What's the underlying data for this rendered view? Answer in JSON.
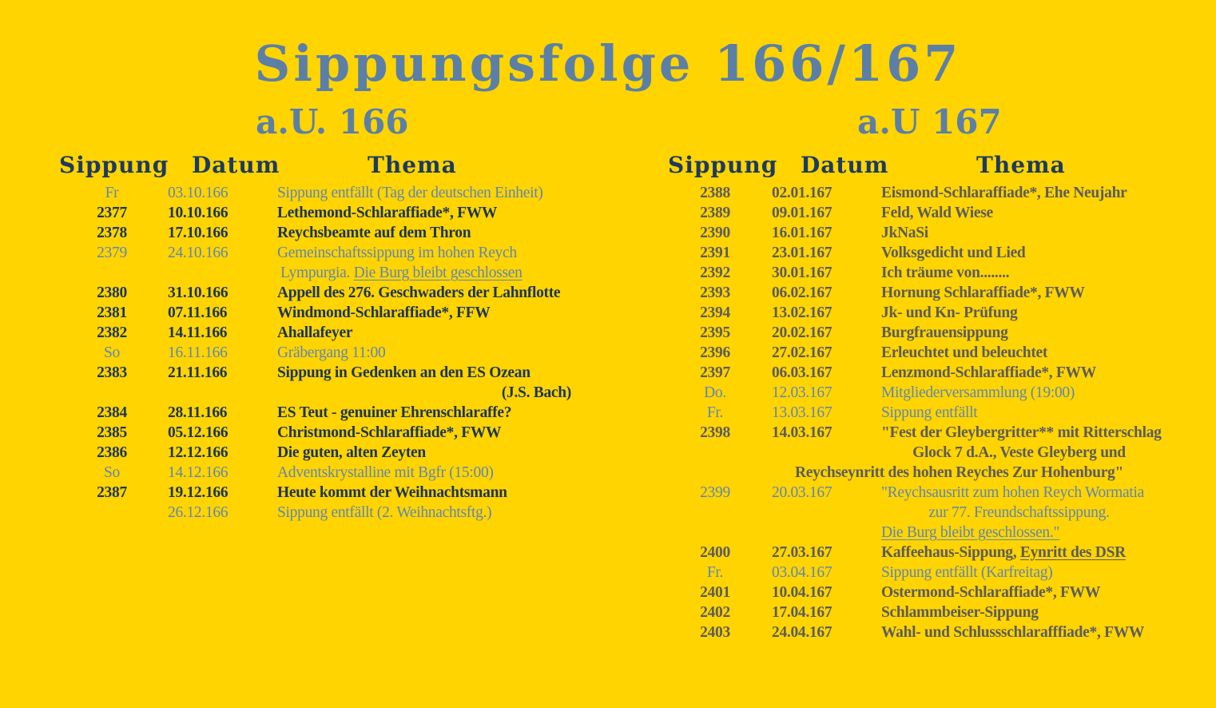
{
  "title": "Sippungsfolge 166/167",
  "colors": {
    "background": "#FFD400",
    "title": "#5b7fa6",
    "dark": "#1d3557",
    "light": "#5f86b3",
    "grey": "#5c5c5c"
  },
  "headers": {
    "sippung": "Sippung",
    "datum": "Datum",
    "thema": "Thema"
  },
  "left": {
    "year": "a.U. 166",
    "rows": [
      {
        "num": "Fr",
        "date": "03.10.166",
        "style": "light",
        "parts": [
          {
            "text": "Sippung entfällt (Tag der deutschen Einheit)"
          }
        ]
      },
      {
        "num": "2377",
        "date": "10.10.166",
        "style": "dark",
        "parts": [
          {
            "text": "Lethemond-Schlaraffiade*, FWW"
          }
        ]
      },
      {
        "num": "2378",
        "date": "17.10.166",
        "style": "dark",
        "parts": [
          {
            "text": "Reychsbeamte auf dem Thron"
          }
        ]
      },
      {
        "num": "2379",
        "date": "24.10.166",
        "style": "light",
        "parts": [
          {
            "text": "Gemeinschaftssippung im hohen Reych"
          }
        ]
      },
      {
        "num": "",
        "date": "",
        "style": "light",
        "align": "indent",
        "parts": [
          {
            "text": "Lympurgia. "
          },
          {
            "text": "Die Burg bleibt geschlossen",
            "underline": true
          }
        ]
      },
      {
        "num": "2380",
        "date": "31.10.166",
        "style": "dark",
        "parts": [
          {
            "text": "Appell des 276. Geschwaders der Lahnflotte"
          }
        ]
      },
      {
        "num": "2381",
        "date": "07.11.166",
        "style": "dark",
        "parts": [
          {
            "text": "Windmond-Schlaraffiade*, FFW"
          }
        ]
      },
      {
        "num": "2382",
        "date": "14.11.166",
        "style": "dark",
        "parts": [
          {
            "text": "Ahallafeyer"
          }
        ]
      },
      {
        "num": "So",
        "date": "16.11.166",
        "style": "light",
        "parts": [
          {
            "text": "Gräbergang   11:00"
          }
        ]
      },
      {
        "num": "2383",
        "date": "21.11.166",
        "style": "dark",
        "parts": [
          {
            "text": "Sippung in Gedenken an den  ES Ozean"
          }
        ]
      },
      {
        "num": "",
        "date": "",
        "style": "dark",
        "align": "right",
        "parts": [
          {
            "text": "(J.S. Bach)"
          }
        ]
      },
      {
        "num": "2384",
        "date": "28.11.166",
        "style": "dark",
        "parts": [
          {
            "text": "ES Teut - genuiner Ehrenschlaraffe?"
          }
        ]
      },
      {
        "num": "2385",
        "date": "05.12.166",
        "style": "dark",
        "parts": [
          {
            "text": "Christmond-Schlaraffiade*, FWW"
          }
        ]
      },
      {
        "num": "2386",
        "date": "12.12.166",
        "style": "dark",
        "parts": [
          {
            "text": "Die guten, alten Zeyten"
          }
        ]
      },
      {
        "num": "So",
        "date": "14.12.166",
        "style": "light",
        "parts": [
          {
            "text": "Adventskrystalline mit Bgfr (15:00)"
          }
        ]
      },
      {
        "num": "2387",
        "date": "19.12.166",
        "style": "dark",
        "parts": [
          {
            "text": "Heute kommt der Weihnachtsmann"
          }
        ]
      },
      {
        "num": "",
        "date": "26.12.166",
        "style": "light",
        "parts": [
          {
            "text": "Sippung entfällt (2. Weihnachtsftg.)"
          }
        ]
      }
    ]
  },
  "right": {
    "year": "a.U 167",
    "rows": [
      {
        "num": "2388",
        "date": "02.01.167",
        "style": "grey",
        "parts": [
          {
            "text": "Eismond-Schlaraffiade*, Ehe Neujahr"
          }
        ]
      },
      {
        "num": "2389",
        "date": "09.01.167",
        "style": "grey",
        "parts": [
          {
            "text": "Feld, Wald Wiese"
          }
        ]
      },
      {
        "num": "2390",
        "date": "16.01.167",
        "style": "grey",
        "parts": [
          {
            "text": "JkNaSi"
          }
        ]
      },
      {
        "num": "2391",
        "date": "23.01.167",
        "style": "grey",
        "parts": [
          {
            "text": "Volksgedicht und Lied"
          }
        ]
      },
      {
        "num": "2392",
        "date": "30.01.167",
        "style": "grey",
        "parts": [
          {
            "text": "Ich träume von........"
          }
        ]
      },
      {
        "num": "2393",
        "date": "06.02.167",
        "style": "grey",
        "parts": [
          {
            "text": "Hornung Schlaraffiade*, FWW"
          }
        ]
      },
      {
        "num": "2394",
        "date": "13.02.167",
        "style": "grey",
        "parts": [
          {
            "text": "Jk- und Kn- Prüfung"
          }
        ]
      },
      {
        "num": "2395",
        "date": "20.02.167",
        "style": "grey",
        "parts": [
          {
            "text": "Burgfrauensippung"
          }
        ]
      },
      {
        "num": "2396",
        "date": "27.02.167",
        "style": "grey",
        "parts": [
          {
            "text": "Erleuchtet und beleuchtet"
          }
        ]
      },
      {
        "num": "2397",
        "date": "06.03.167",
        "style": "grey",
        "parts": [
          {
            "text": "Lenzmond-Schlaraffiade*, FWW"
          }
        ]
      },
      {
        "num": "Do.",
        "date": "12.03.167",
        "style": "light",
        "parts": [
          {
            "text": "Mitgliederversammlung (19:00)"
          }
        ]
      },
      {
        "num": "Fr.",
        "date": "13.03.167",
        "style": "light",
        "parts": [
          {
            "text": "Sippung entfällt"
          }
        ]
      },
      {
        "num": "2398",
        "date": "14.03.167",
        "style": "grey",
        "parts": [
          {
            "text": "\"Fest der Gleybergritter** mit Ritterschlag"
          }
        ]
      },
      {
        "num": "",
        "date": "",
        "style": "grey",
        "align": "center",
        "parts": [
          {
            "text": "Glock 7 d.A., Veste Gleyberg und"
          }
        ]
      },
      {
        "num": "",
        "date": "",
        "style": "grey",
        "align": "wide",
        "parts": [
          {
            "text": "Reychseynritt des hohen Reyches Zur Hohenburg\""
          }
        ]
      },
      {
        "num": "2399",
        "date": "20.03.167",
        "style": "light",
        "parts": [
          {
            "text": "\"Reychsausritt zum hohen Reych Wormatia"
          }
        ]
      },
      {
        "num": "",
        "date": "",
        "style": "light",
        "align": "center",
        "parts": [
          {
            "text": "zur 77. Freundschaftssippung."
          }
        ]
      },
      {
        "num": "",
        "date": "",
        "style": "light",
        "parts": [
          {
            "text": "Die Burg bleibt geschlossen.\"",
            "underline": true
          }
        ]
      },
      {
        "num": "2400",
        "date": "27.03.167",
        "style": "grey",
        "parts": [
          {
            "text": "Kaffeehaus-Sippung, "
          },
          {
            "text": "Eynritt des DSR",
            "underline": true
          }
        ]
      },
      {
        "num": "Fr.",
        "date": "03.04.167",
        "style": "light",
        "parts": [
          {
            "text": "Sippung entfällt (Karfreitag)"
          }
        ]
      },
      {
        "num": "2401",
        "date": "10.04.167",
        "style": "grey",
        "parts": [
          {
            "text": "Ostermond-Schlaraffiade*, FWW"
          }
        ]
      },
      {
        "num": "2402",
        "date": "17.04.167",
        "style": "grey",
        "parts": [
          {
            "text": "Schlammbeiser-Sippung"
          }
        ]
      },
      {
        "num": "2403",
        "date": "24.04.167",
        "style": "grey",
        "parts": [
          {
            "text": "Wahl- und Schlussschlarafffiade*, FWW"
          }
        ]
      }
    ]
  }
}
